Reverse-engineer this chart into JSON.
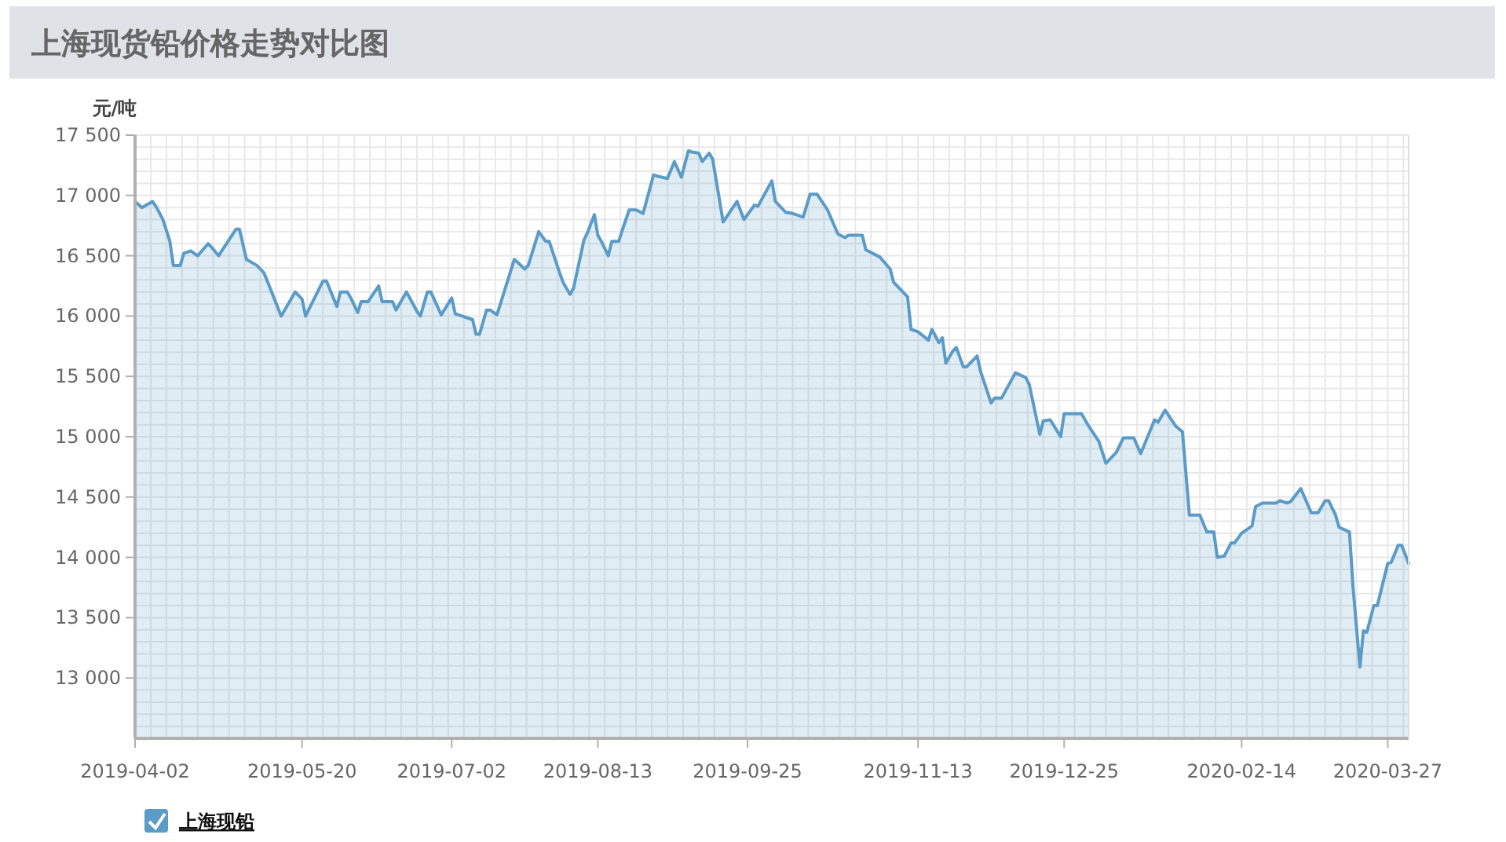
{
  "chart_data": {
    "type": "area",
    "title": "上海现货铅价格走势对比图",
    "ylabel": "元/吨",
    "xlim": [
      "2019-04-02",
      "2020-04-02"
    ],
    "ylim": [
      12500,
      17500
    ],
    "xticks": [
      "2019-04-02",
      "2019-05-20",
      "2019-07-02",
      "2019-08-13",
      "2019-09-25",
      "2019-11-13",
      "2019-12-25",
      "2020-02-14",
      "2020-03-27"
    ],
    "yticks": [
      {
        "value": 13000,
        "label": "13 000"
      },
      {
        "value": 13500,
        "label": "13 500"
      },
      {
        "value": 14000,
        "label": "14 000"
      },
      {
        "value": 14500,
        "label": "14 500"
      },
      {
        "value": 15000,
        "label": "15 000"
      },
      {
        "value": 15500,
        "label": "15 500"
      },
      {
        "value": 16000,
        "label": "16 000"
      },
      {
        "value": 16500,
        "label": "16 500"
      },
      {
        "value": 17000,
        "label": "17 000"
      },
      {
        "value": 17500,
        "label": "17 500"
      }
    ],
    "grid": true,
    "legend": "bottom left",
    "series": [
      {
        "name": "上海现铅",
        "color": "#5b9bc8",
        "x": [
          "2019-04-02",
          "2019-04-04",
          "2019-04-07",
          "2019-04-08",
          "2019-04-10",
          "2019-04-12",
          "2019-04-13",
          "2019-04-15",
          "2019-04-16",
          "2019-04-18",
          "2019-04-20",
          "2019-04-23",
          "2019-04-24",
          "2019-04-26",
          "2019-05-01",
          "2019-05-02",
          "2019-05-04",
          "2019-05-07",
          "2019-05-09",
          "2019-05-10",
          "2019-05-14",
          "2019-05-18",
          "2019-05-20",
          "2019-05-21",
          "2019-05-26",
          "2019-05-27",
          "2019-05-30",
          "2019-05-31",
          "2019-06-02",
          "2019-06-03",
          "2019-06-05",
          "2019-06-06",
          "2019-06-08",
          "2019-06-11",
          "2019-06-12",
          "2019-06-15",
          "2019-06-16",
          "2019-06-19",
          "2019-06-22",
          "2019-06-23",
          "2019-06-25",
          "2019-06-26",
          "2019-06-29",
          "2019-07-02",
          "2019-07-03",
          "2019-07-08",
          "2019-07-09",
          "2019-07-10",
          "2019-07-12",
          "2019-07-13",
          "2019-07-15",
          "2019-07-20",
          "2019-07-23",
          "2019-07-24",
          "2019-07-27",
          "2019-07-29",
          "2019-07-30",
          "2019-08-02",
          "2019-08-03",
          "2019-08-05",
          "2019-08-06",
          "2019-08-09",
          "2019-08-10",
          "2019-08-12",
          "2019-08-13",
          "2019-08-14",
          "2019-08-16",
          "2019-08-17",
          "2019-08-19",
          "2019-08-20",
          "2019-08-22",
          "2019-08-24",
          "2019-08-26",
          "2019-08-29",
          "2019-08-30",
          "2019-09-02",
          "2019-09-04",
          "2019-09-06",
          "2019-09-08",
          "2019-09-09",
          "2019-09-11",
          "2019-09-12",
          "2019-09-14",
          "2019-09-15",
          "2019-09-18",
          "2019-09-22",
          "2019-09-24",
          "2019-09-27",
          "2019-09-28",
          "2019-10-02",
          "2019-10-03",
          "2019-10-06",
          "2019-10-08",
          "2019-10-11",
          "2019-10-13",
          "2019-10-15",
          "2019-10-18",
          "2019-10-21",
          "2019-10-23",
          "2019-10-24",
          "2019-10-28",
          "2019-10-29",
          "2019-11-02",
          "2019-11-05",
          "2019-11-06",
          "2019-11-10",
          "2019-11-11",
          "2019-11-13",
          "2019-11-16",
          "2019-11-17",
          "2019-11-19",
          "2019-11-20",
          "2019-11-21",
          "2019-11-23",
          "2019-11-24",
          "2019-11-26",
          "2019-11-27",
          "2019-11-30",
          "2019-12-01",
          "2019-12-04",
          "2019-12-05",
          "2019-12-07",
          "2019-12-11",
          "2019-12-14",
          "2019-12-15",
          "2019-12-18",
          "2019-12-19",
          "2019-12-21",
          "2019-12-24",
          "2019-12-25",
          "2019-12-30",
          "2020-01-01",
          "2020-01-04",
          "2020-01-06",
          "2020-01-09",
          "2020-01-11",
          "2020-01-14",
          "2020-01-16",
          "2020-01-20",
          "2020-01-21",
          "2020-01-23",
          "2020-01-26",
          "2020-01-28",
          "2020-01-30",
          "2020-02-02",
          "2020-02-04",
          "2020-02-06",
          "2020-02-07",
          "2020-02-09",
          "2020-02-11",
          "2020-02-12",
          "2020-02-14",
          "2020-02-17",
          "2020-02-18",
          "2020-02-20",
          "2020-02-24",
          "2020-02-25",
          "2020-02-27",
          "2020-02-28",
          "2020-03-02",
          "2020-03-05",
          "2020-03-07",
          "2020-03-09",
          "2020-03-10",
          "2020-03-12",
          "2020-03-13",
          "2020-03-16",
          "2020-03-17",
          "2020-03-19",
          "2020-03-20",
          "2020-03-21",
          "2020-03-23",
          "2020-03-24",
          "2020-03-27",
          "2020-03-28",
          "2020-03-30",
          "2020-03-31",
          "2020-04-02"
        ],
        "values": [
          16950,
          16900,
          16950,
          16910,
          16800,
          16620,
          16420,
          16420,
          16520,
          16540,
          16500,
          16600,
          16570,
          16500,
          16720,
          16720,
          16470,
          16420,
          16360,
          16290,
          16000,
          16200,
          16140,
          16000,
          16290,
          16290,
          16080,
          16200,
          16200,
          16150,
          16030,
          16120,
          16120,
          16250,
          16120,
          16120,
          16050,
          16200,
          16040,
          16000,
          16200,
          16200,
          16010,
          16150,
          16020,
          15970,
          15850,
          15850,
          16050,
          16050,
          16010,
          16470,
          16390,
          16420,
          16700,
          16620,
          16620,
          16360,
          16280,
          16180,
          16230,
          16630,
          16690,
          16840,
          16670,
          16620,
          16500,
          16620,
          16620,
          16710,
          16880,
          16880,
          16850,
          17170,
          17160,
          17140,
          17280,
          17150,
          17370,
          17360,
          17350,
          17280,
          17350,
          17300,
          16780,
          16950,
          16800,
          16920,
          16910,
          17120,
          16950,
          16860,
          16850,
          16820,
          17010,
          17010,
          16880,
          16680,
          16650,
          16670,
          16670,
          16550,
          16490,
          16390,
          16280,
          16160,
          15890,
          15870,
          15800,
          15890,
          15780,
          15820,
          15610,
          15710,
          15740,
          15580,
          15580,
          15670,
          15540,
          15280,
          15320,
          15320,
          15530,
          15490,
          15430,
          15020,
          15130,
          15140,
          15000,
          15190,
          15190,
          15090,
          14960,
          14780,
          14870,
          14990,
          14990,
          14860,
          15140,
          15120,
          15220,
          15090,
          15040,
          14350,
          14350,
          14210,
          14210,
          14000,
          14010,
          14120,
          14120,
          14200,
          14260,
          14420,
          14450,
          14450,
          14470,
          14450,
          14460,
          14570,
          14370,
          14370,
          14470,
          14470,
          14350,
          14250,
          14210,
          13760,
          13090,
          13390,
          13380,
          13600,
          13600,
          13950,
          13960,
          14100,
          14100,
          13950
        ]
      }
    ]
  }
}
